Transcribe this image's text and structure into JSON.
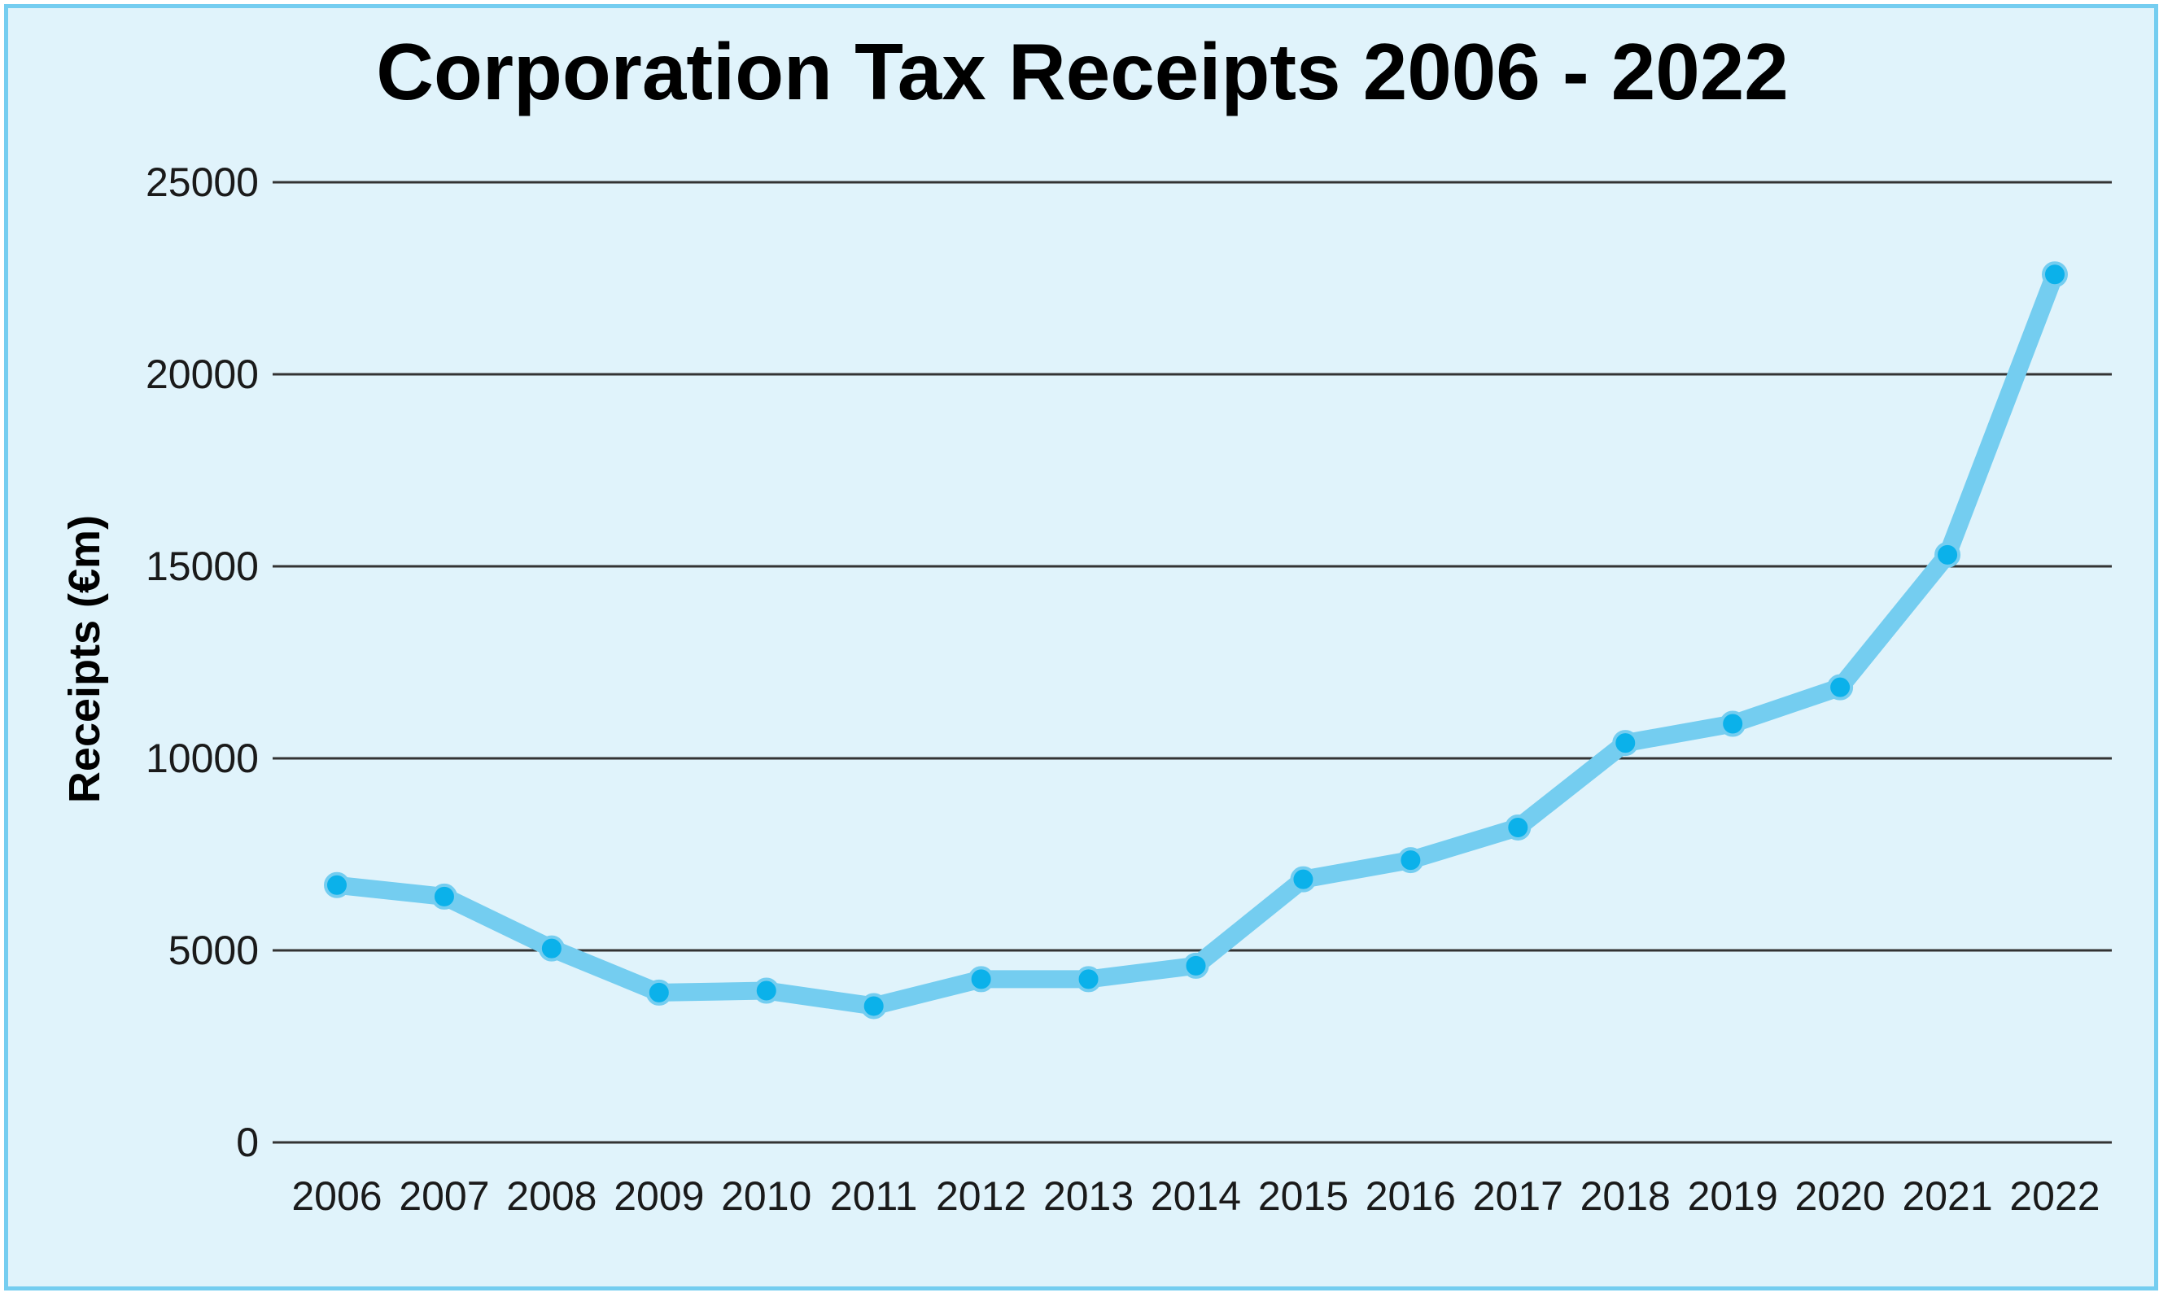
{
  "chart_data": {
    "type": "line",
    "title": "Corporation Tax Receipts 2006 - 2022",
    "xlabel": "",
    "ylabel": "Receipts (€m)",
    "ylim": [
      0,
      25000
    ],
    "yticks": [
      0,
      5000,
      10000,
      15000,
      20000,
      25000
    ],
    "grid": true,
    "categories": [
      "2006",
      "2007",
      "2008",
      "2009",
      "2010",
      "2011",
      "2012",
      "2013",
      "2014",
      "2015",
      "2016",
      "2017",
      "2018",
      "2019",
      "2020",
      "2021",
      "2022"
    ],
    "series": [
      {
        "values": [
          6700,
          6400,
          5050,
          3900,
          3950,
          3550,
          4250,
          4250,
          4600,
          6850,
          7350,
          8200,
          10400,
          10900,
          11850,
          15300,
          22600
        ],
        "line_color": "#74cdf0",
        "marker_color": "#0bb1ea"
      }
    ]
  }
}
